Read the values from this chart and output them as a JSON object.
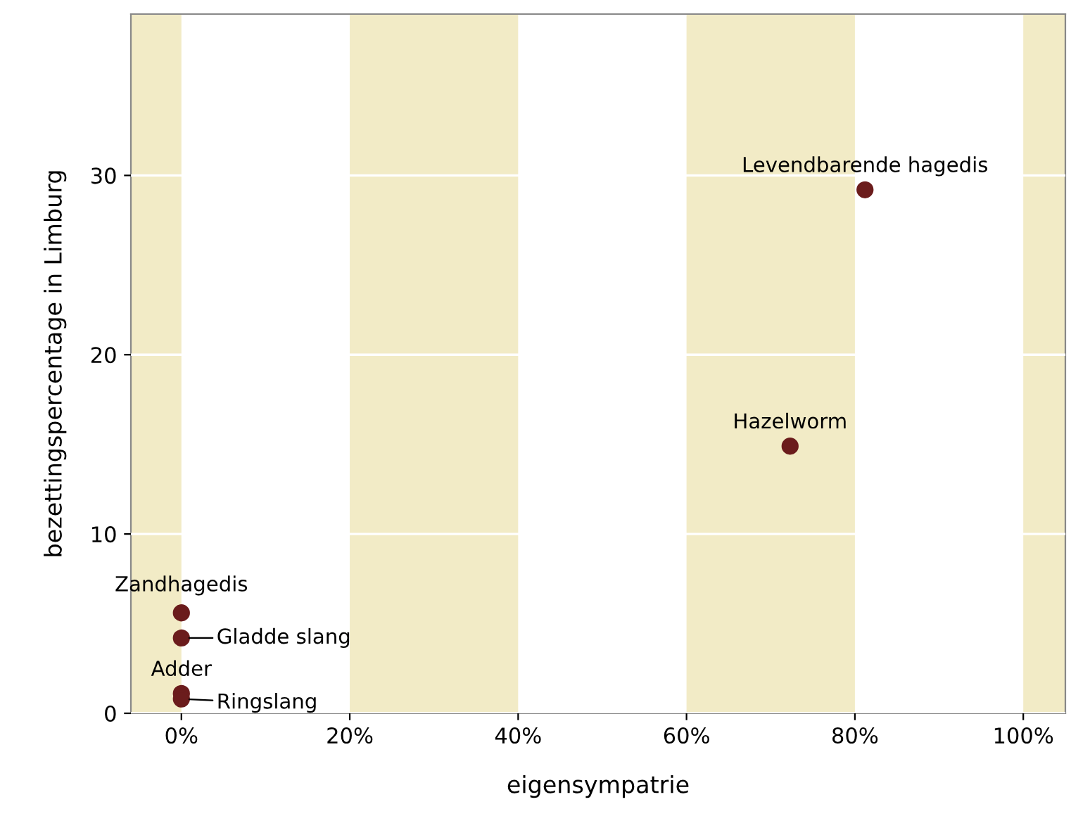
{
  "chart_data": {
    "type": "scatter",
    "xlabel": "eigensympatrie",
    "ylabel": "bezettingspercentage in Limburg",
    "x": [
      81.2,
      72.3,
      0,
      0,
      0,
      0
    ],
    "values": [
      29.2,
      14.9,
      5.6,
      4.2,
      1.1,
      0.8
    ],
    "color": "#6b1c1c",
    "marker": "circle",
    "xlim": [
      -6,
      105
    ],
    "ylim": [
      0,
      39
    ],
    "xticks": [
      {
        "value": 0,
        "label": "0%"
      },
      {
        "value": 20,
        "label": "20%"
      },
      {
        "value": 40,
        "label": "40%"
      },
      {
        "value": 60,
        "label": "60%"
      },
      {
        "value": 80,
        "label": "80%"
      },
      {
        "value": 100,
        "label": "100%"
      }
    ],
    "yticks": [
      0,
      10,
      20,
      30
    ],
    "grid": "y",
    "bands": [
      {
        "axis": "x",
        "from": -6,
        "to": 0,
        "color": "#f2ebc6"
      },
      {
        "axis": "x",
        "from": 20,
        "to": 40,
        "color": "#f2ebc6"
      },
      {
        "axis": "x",
        "from": 60,
        "to": 80,
        "color": "#f2ebc6"
      },
      {
        "axis": "x",
        "from": 100,
        "to": 105,
        "color": "#f2ebc6"
      }
    ],
    "annotations": [
      {
        "text": "Levendbarende hagedis",
        "x": 81.2,
        "y": 29.2
      },
      {
        "text": "Hazelworm",
        "x": 72.3,
        "y": 14.9
      },
      {
        "text": "Zandhagedis",
        "x": 0,
        "y": 5.6
      },
      {
        "text": "Gladde slang",
        "x": 0,
        "y": 4.2
      },
      {
        "text": "Adder",
        "x": 0,
        "y": 1.1
      },
      {
        "text": "Ringslang",
        "x": 0,
        "y": 0.8
      }
    ]
  }
}
